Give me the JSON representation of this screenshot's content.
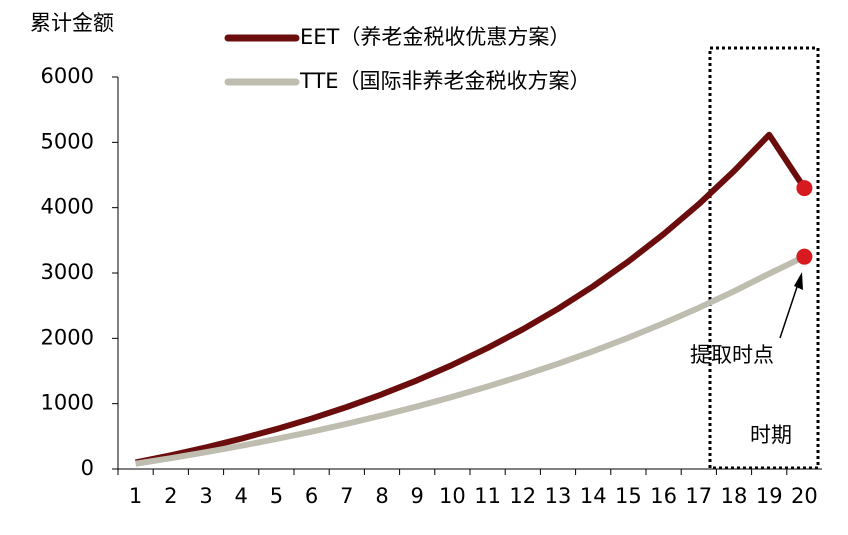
{
  "chart_data": {
    "type": "line",
    "y_label": "累计金额",
    "x_label": "时期",
    "annotation": "提取时点",
    "categories": [
      "1",
      "2",
      "3",
      "4",
      "5",
      "6",
      "7",
      "8",
      "9",
      "10",
      "11",
      "12",
      "13",
      "14",
      "15",
      "16",
      "17",
      "18",
      "19",
      "20"
    ],
    "series": [
      {
        "name": "EET（养老金税收优惠方案）",
        "color": "#6b0d0d",
        "values": [
          100,
          210,
          331,
          464,
          611,
          772,
          949,
          1144,
          1358,
          1594,
          1853,
          2138,
          2452,
          2797,
          3177,
          3595,
          4054,
          4560,
          5116,
          4300
        ]
      },
      {
        "name": "TTE（国际非养老金税收方案）",
        "color": "#bfbdb0",
        "values": [
          80,
          165,
          257,
          355,
          460,
          572,
          692,
          820,
          958,
          1105,
          1263,
          1431,
          1611,
          1804,
          2010,
          2231,
          2467,
          2720,
          2990,
          3250
        ]
      }
    ],
    "point_color": "#d71920",
    "ylim": [
      0,
      6000
    ],
    "yticks": [
      0,
      1000,
      2000,
      3000,
      4000,
      5000,
      6000
    ]
  }
}
